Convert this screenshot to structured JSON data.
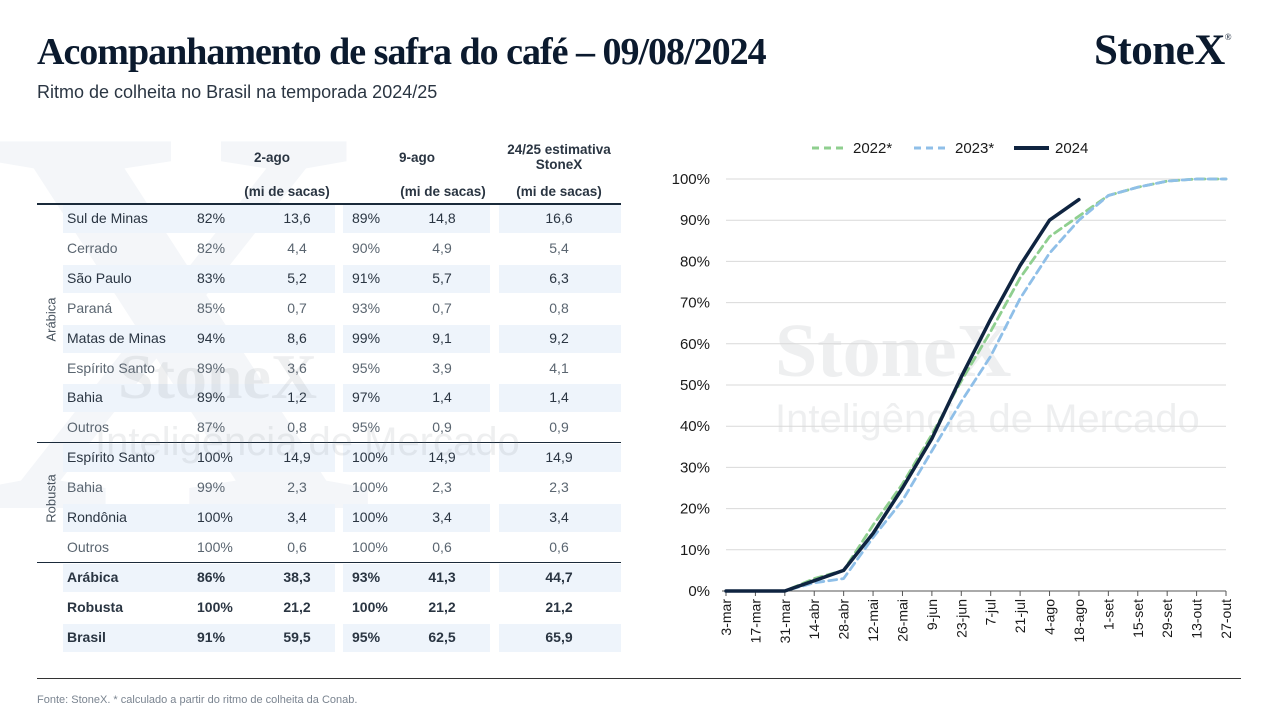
{
  "header": {
    "title": "Acompanhamento de safra do café – 09/08/2024",
    "subtitle": "Ritmo de colheita no Brasil na temporada 2024/25",
    "logo": "StoneX",
    "logo_mark": "®"
  },
  "watermark": {
    "logo": "StoneX",
    "subtitle": "Inteligência de Mercado"
  },
  "table": {
    "col_2ago": "2-ago",
    "col_9ago": "9-ago",
    "col_est_line1": "24/25 estimativa",
    "col_est_line2": "StoneX",
    "unit": "(mi de sacas)",
    "group_arabica": "Arábica",
    "group_robusta": "Robusta",
    "rows": [
      {
        "region": "Sul de Minas",
        "pct_2ago": "82%",
        "val_2ago": "13,6",
        "pct_9ago": "89%",
        "val_9ago": "14,8",
        "est": "16,6"
      },
      {
        "region": "Cerrado",
        "pct_2ago": "82%",
        "val_2ago": "4,4",
        "pct_9ago": "90%",
        "val_9ago": "4,9",
        "est": "5,4"
      },
      {
        "region": "São Paulo",
        "pct_2ago": "83%",
        "val_2ago": "5,2",
        "pct_9ago": "91%",
        "val_9ago": "5,7",
        "est": "6,3"
      },
      {
        "region": "Paraná",
        "pct_2ago": "85%",
        "val_2ago": "0,7",
        "pct_9ago": "93%",
        "val_9ago": "0,7",
        "est": "0,8"
      },
      {
        "region": "Matas de Minas",
        "pct_2ago": "94%",
        "val_2ago": "8,6",
        "pct_9ago": "99%",
        "val_9ago": "9,1",
        "est": "9,2"
      },
      {
        "region": "Espírito Santo",
        "pct_2ago": "89%",
        "val_2ago": "3,6",
        "pct_9ago": "95%",
        "val_9ago": "3,9",
        "est": "4,1"
      },
      {
        "region": "Bahia",
        "pct_2ago": "89%",
        "val_2ago": "1,2",
        "pct_9ago": "97%",
        "val_9ago": "1,4",
        "est": "1,4"
      },
      {
        "region": "Outros",
        "pct_2ago": "87%",
        "val_2ago": "0,8",
        "pct_9ago": "95%",
        "val_9ago": "0,9",
        "est": "0,9"
      },
      {
        "region": "Espírito Santo",
        "pct_2ago": "100%",
        "val_2ago": "14,9",
        "pct_9ago": "100%",
        "val_9ago": "14,9",
        "est": "14,9"
      },
      {
        "region": "Bahia",
        "pct_2ago": "99%",
        "val_2ago": "2,3",
        "pct_9ago": "100%",
        "val_9ago": "2,3",
        "est": "2,3"
      },
      {
        "region": "Rondônia",
        "pct_2ago": "100%",
        "val_2ago": "3,4",
        "pct_9ago": "100%",
        "val_9ago": "3,4",
        "est": "3,4"
      },
      {
        "region": "Outros",
        "pct_2ago": "100%",
        "val_2ago": "0,6",
        "pct_9ago": "100%",
        "val_9ago": "0,6",
        "est": "0,6"
      },
      {
        "region": "Arábica",
        "pct_2ago": "86%",
        "val_2ago": "38,3",
        "pct_9ago": "93%",
        "val_9ago": "41,3",
        "est": "44,7"
      },
      {
        "region": "Robusta",
        "pct_2ago": "100%",
        "val_2ago": "21,2",
        "pct_9ago": "100%",
        "val_9ago": "21,2",
        "est": "21,2"
      },
      {
        "region": "Brasil",
        "pct_2ago": "91%",
        "val_2ago": "59,5",
        "pct_9ago": "95%",
        "val_9ago": "62,5",
        "est": "65,9"
      }
    ]
  },
  "footnote": "Fonte: StoneX. * calculado a partir do ritmo de colheita da Conab.",
  "chart_data": {
    "type": "line",
    "title": "",
    "xlabel": "",
    "ylabel": "",
    "ylim": [
      0,
      100
    ],
    "yticks": [
      "0%",
      "10%",
      "20%",
      "30%",
      "40%",
      "50%",
      "60%",
      "70%",
      "80%",
      "90%",
      "100%"
    ],
    "categories": [
      "3-mar",
      "17-mar",
      "31-mar",
      "14-abr",
      "28-abr",
      "12-mai",
      "26-mai",
      "9-jun",
      "23-jun",
      "7-jul",
      "21-jul",
      "4-ago",
      "18-ago",
      "1-set",
      "15-set",
      "29-set",
      "13-out",
      "27-out"
    ],
    "legend_position": "top",
    "series": [
      {
        "name": "2022*",
        "color": "#8fcf8f",
        "dash": "dashed",
        "values": [
          0,
          0,
          0,
          3,
          5,
          16,
          26,
          38,
          51,
          63,
          76,
          86,
          91,
          96,
          98,
          99.5,
          100,
          100
        ]
      },
      {
        "name": "2023*",
        "color": "#8fbfe8",
        "dash": "dashed",
        "values": [
          0,
          0,
          0,
          2,
          3,
          13,
          22,
          34,
          46,
          57,
          71,
          82,
          90,
          96,
          98,
          99.5,
          100,
          100
        ]
      },
      {
        "name": "2024",
        "color": "#0f2440",
        "dash": "solid",
        "values": [
          0,
          0,
          0,
          2.5,
          5,
          14,
          25,
          37,
          52,
          66,
          79,
          90,
          95,
          null,
          null,
          null,
          null,
          null
        ]
      }
    ]
  }
}
